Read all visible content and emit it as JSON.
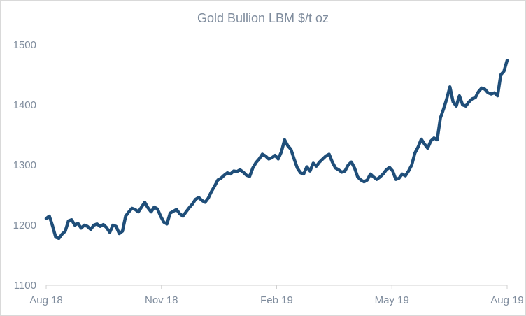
{
  "chart_data": {
    "type": "line",
    "title": "Gold Bullion  LBM $/t oz",
    "xlabel": "",
    "ylabel": "",
    "ylim": [
      1100,
      1500
    ],
    "y_ticks": [
      1100,
      1200,
      1300,
      1400,
      1500
    ],
    "x_ticks": [
      "Aug 18",
      "Nov 18",
      "Feb 19",
      "May 19",
      "Aug 19"
    ],
    "grid": false,
    "legend": "none",
    "line_color": "#1f4e79",
    "series": [
      {
        "values": [
          1211,
          1215,
          1199,
          1180,
          1178,
          1185,
          1190,
          1207,
          1209,
          1200,
          1203,
          1195,
          1200,
          1198,
          1193,
          1200,
          1202,
          1198,
          1201,
          1196,
          1188,
          1200,
          1198,
          1186,
          1190,
          1215,
          1222,
          1228,
          1226,
          1222,
          1230,
          1238,
          1229,
          1222,
          1230,
          1227,
          1215,
          1205,
          1202,
          1220,
          1223,
          1226,
          1219,
          1215,
          1222,
          1229,
          1235,
          1243,
          1246,
          1241,
          1238,
          1245,
          1256,
          1265,
          1275,
          1278,
          1283,
          1287,
          1285,
          1290,
          1289,
          1292,
          1288,
          1283,
          1281,
          1295,
          1304,
          1310,
          1318,
          1315,
          1310,
          1312,
          1316,
          1310,
          1322,
          1342,
          1332,
          1326,
          1310,
          1295,
          1287,
          1285,
          1297,
          1290,
          1303,
          1298,
          1305,
          1310,
          1315,
          1318,
          1305,
          1295,
          1292,
          1288,
          1290,
          1300,
          1305,
          1295,
          1280,
          1275,
          1272,
          1275,
          1285,
          1280,
          1276,
          1280,
          1285,
          1292,
          1296,
          1290,
          1276,
          1278,
          1285,
          1282,
          1290,
          1300,
          1320,
          1330,
          1343,
          1335,
          1328,
          1340,
          1345,
          1342,
          1378,
          1393,
          1410,
          1430,
          1405,
          1398,
          1415,
          1400,
          1398,
          1405,
          1410,
          1412,
          1422,
          1428,
          1426,
          1420,
          1418,
          1420,
          1415,
          1450,
          1456,
          1474
        ]
      }
    ]
  }
}
